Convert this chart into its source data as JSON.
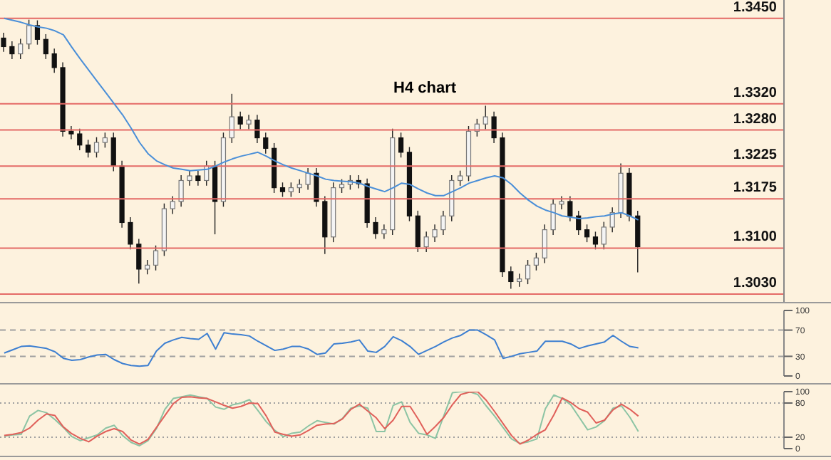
{
  "chart_data": [
    {
      "type": "candlestick",
      "title": "H4 chart",
      "categories": [
        null,
        null,
        null,
        null,
        null,
        null,
        null,
        null,
        null,
        null,
        null,
        null,
        null,
        null,
        null,
        null,
        null,
        null,
        null,
        null,
        null,
        null,
        null,
        null,
        null,
        null,
        null,
        null,
        null,
        null,
        null,
        null,
        null,
        null,
        null,
        null,
        null,
        null,
        null,
        null,
        null,
        null,
        null,
        null,
        null,
        null,
        null,
        null,
        null,
        null,
        null,
        null,
        null,
        null,
        null,
        null,
        null,
        null,
        null,
        null,
        null,
        null,
        null,
        null,
        null,
        null,
        null,
        null,
        null,
        null,
        null,
        null,
        null,
        null,
        null,
        null
      ],
      "ohlc": [
        [
          1.342,
          1.3428,
          1.3399,
          1.3407
        ],
        [
          1.3407,
          1.3415,
          1.3388,
          1.3396
        ],
        [
          1.3396,
          1.3419,
          1.3388,
          1.3411
        ],
        [
          1.3411,
          1.3448,
          1.3403,
          1.3439
        ],
        [
          1.3439,
          1.3447,
          1.341,
          1.3418
        ],
        [
          1.3418,
          1.3426,
          1.3388,
          1.3396
        ],
        [
          1.3396,
          1.3404,
          1.3367,
          1.3375
        ],
        [
          1.3375,
          1.3383,
          1.327,
          1.3278
        ],
        [
          1.3278,
          1.3286,
          1.3266,
          1.3274
        ],
        [
          1.3274,
          1.3282,
          1.3249,
          1.3257
        ],
        [
          1.3257,
          1.3265,
          1.3238,
          1.3246
        ],
        [
          1.3246,
          1.3269,
          1.3238,
          1.3261
        ],
        [
          1.3261,
          1.3276,
          1.3253,
          1.3268
        ],
        [
          1.3268,
          1.3276,
          1.3217,
          1.3225
        ],
        [
          1.3225,
          1.3233,
          1.3131,
          1.3139
        ],
        [
          1.3139,
          1.3147,
          1.3098,
          1.3106
        ],
        [
          1.3106,
          1.3114,
          1.3046,
          1.3068
        ],
        [
          1.3068,
          1.3082,
          1.306,
          1.3074
        ],
        [
          1.3074,
          1.3104,
          1.3066,
          1.3096
        ],
        [
          1.3096,
          1.3168,
          1.3088,
          1.316
        ],
        [
          1.316,
          1.3179,
          1.3152,
          1.3171
        ],
        [
          1.3171,
          1.3211,
          1.3163,
          1.3203
        ],
        [
          1.3203,
          1.3218,
          1.3195,
          1.321
        ],
        [
          1.321,
          1.3218,
          1.3195,
          1.3203
        ],
        [
          1.3203,
          1.3233,
          1.3195,
          1.3225
        ],
        [
          1.3225,
          1.3233,
          1.3121,
          1.3171
        ],
        [
          1.3171,
          1.3276,
          1.3163,
          1.3268
        ],
        [
          1.3268,
          1.3335,
          1.326,
          1.33
        ],
        [
          1.33,
          1.3308,
          1.3281,
          1.3289
        ],
        [
          1.3289,
          1.3303,
          1.3281,
          1.3295
        ],
        [
          1.3295,
          1.3303,
          1.326,
          1.3268
        ],
        [
          1.3268,
          1.3276,
          1.3244,
          1.3252
        ],
        [
          1.3252,
          1.326,
          1.3184,
          1.3192
        ],
        [
          1.3192,
          1.32,
          1.3178,
          1.3186
        ],
        [
          1.3186,
          1.32,
          1.3178,
          1.3192
        ],
        [
          1.3192,
          1.3205,
          1.3184,
          1.3197
        ],
        [
          1.3197,
          1.3222,
          1.3189,
          1.3214
        ],
        [
          1.3214,
          1.3222,
          1.3163,
          1.3171
        ],
        [
          1.3171,
          1.3179,
          1.3091,
          1.3117
        ],
        [
          1.3117,
          1.32,
          1.3109,
          1.3192
        ],
        [
          1.3192,
          1.3205,
          1.3184,
          1.3197
        ],
        [
          1.3197,
          1.3211,
          1.3189,
          1.3203
        ],
        [
          1.3203,
          1.3211,
          1.3191,
          1.3198
        ],
        [
          1.3198,
          1.3206,
          1.3131,
          1.3139
        ],
        [
          1.3139,
          1.3147,
          1.3114,
          1.3122
        ],
        [
          1.3122,
          1.3136,
          1.3114,
          1.3128
        ],
        [
          1.3128,
          1.3282,
          1.312,
          1.3268
        ],
        [
          1.3268,
          1.3276,
          1.3238,
          1.3246
        ],
        [
          1.3246,
          1.3254,
          1.3141,
          1.3149
        ],
        [
          1.3149,
          1.3157,
          1.3094,
          1.3102
        ],
        [
          1.3102,
          1.3125,
          1.3094,
          1.3117
        ],
        [
          1.3117,
          1.3136,
          1.3109,
          1.3128
        ],
        [
          1.3128,
          1.3157,
          1.312,
          1.3149
        ],
        [
          1.3149,
          1.3211,
          1.3141,
          1.3203
        ],
        [
          1.3203,
          1.3218,
          1.3195,
          1.321
        ],
        [
          1.321,
          1.3286,
          1.3202,
          1.3278
        ],
        [
          1.3278,
          1.3297,
          1.327,
          1.3289
        ],
        [
          1.3289,
          1.3317,
          1.3281,
          1.33
        ],
        [
          1.33,
          1.3308,
          1.326,
          1.3268
        ],
        [
          1.3268,
          1.3276,
          1.3056,
          1.3064
        ],
        [
          1.3064,
          1.3072,
          1.3038,
          1.3049
        ],
        [
          1.3049,
          1.3061,
          1.3041,
          1.3053
        ],
        [
          1.3053,
          1.3082,
          1.3045,
          1.3074
        ],
        [
          1.3074,
          1.3093,
          1.3066,
          1.3085
        ],
        [
          1.3085,
          1.3136,
          1.3077,
          1.3128
        ],
        [
          1.3128,
          1.3175,
          1.312,
          1.3167
        ],
        [
          1.3167,
          1.3179,
          1.3159,
          1.3171
        ],
        [
          1.3171,
          1.3179,
          1.3141,
          1.3149
        ],
        [
          1.3149,
          1.3157,
          1.312,
          1.3128
        ],
        [
          1.3128,
          1.3136,
          1.3109,
          1.3117
        ],
        [
          1.3117,
          1.3125,
          1.3098,
          1.3106
        ],
        [
          1.3106,
          1.314,
          1.3098,
          1.3132
        ],
        [
          1.3132,
          1.3162,
          1.3124,
          1.3154
        ],
        [
          1.3154,
          1.3229,
          1.3146,
          1.3214
        ],
        [
          1.3214,
          1.3222,
          1.3141,
          1.3149
        ],
        [
          1.3149,
          1.3157,
          1.3063,
          1.3102
        ]
      ],
      "series": [
        {
          "type": "line",
          "color": "#4a8fd8",
          "values": [
            1.345,
            1.3447,
            1.3444,
            1.344,
            1.3437,
            1.3435,
            1.3431,
            1.3425,
            1.3406,
            1.3388,
            1.3371,
            1.3354,
            1.3337,
            1.332,
            1.3303,
            1.3283,
            1.3261,
            1.3244,
            1.3233,
            1.3227,
            1.3222,
            1.322,
            1.3218,
            1.3219,
            1.322,
            1.3225,
            1.3231,
            1.3236,
            1.324,
            1.3243,
            1.3246,
            1.324,
            1.3233,
            1.3227,
            1.3222,
            1.3218,
            1.3214,
            1.321,
            1.3205,
            1.3203,
            1.3202,
            1.3201,
            1.3199,
            1.3194,
            1.319,
            1.3186,
            1.3192,
            1.3199,
            1.3197,
            1.319,
            1.3184,
            1.318,
            1.318,
            1.3186,
            1.3192,
            1.3199,
            1.3203,
            1.3207,
            1.321,
            1.3207,
            1.3197,
            1.3184,
            1.3173,
            1.3164,
            1.3158,
            1.3154,
            1.3149,
            1.3147,
            1.3145,
            1.3146,
            1.3148,
            1.3149,
            1.3152,
            1.3154,
            1.3149,
            1.3143
          ]
        }
      ],
      "ylim": [
        1.3018,
        1.3478
      ],
      "tick_labels": false,
      "ref_lines": [
        {
          "axis": "y",
          "value": 1.345,
          "label": "1.3450",
          "color": "#e46a66"
        },
        {
          "axis": "y",
          "value": 1.332,
          "label": "1.3320",
          "color": "#e46a66"
        },
        {
          "axis": "y",
          "value": 1.328,
          "label": "1.3280",
          "color": "#e46a66"
        },
        {
          "axis": "y",
          "value": 1.3225,
          "label": "1.3225",
          "color": "#e46a66"
        },
        {
          "axis": "y",
          "value": 1.3175,
          "label": "1.3175",
          "color": "#e46a66"
        },
        {
          "axis": "y",
          "value": 1.31,
          "label": "1.3100",
          "color": "#e46a66"
        },
        {
          "axis": "y",
          "value": 1.303,
          "label": "1.3030",
          "color": "#e46a66"
        }
      ]
    },
    {
      "type": "line",
      "categories": [
        null,
        null,
        null,
        null,
        null,
        null,
        null,
        null,
        null,
        null,
        null,
        null,
        null,
        null,
        null,
        null,
        null,
        null,
        null,
        null,
        null,
        null,
        null,
        null,
        null,
        null,
        null,
        null,
        null,
        null,
        null,
        null,
        null,
        null,
        null,
        null,
        null,
        null,
        null,
        null,
        null,
        null,
        null,
        null,
        null,
        null,
        null,
        null,
        null,
        null,
        null,
        null,
        null,
        null,
        null,
        null,
        null,
        null,
        null,
        null,
        null,
        null,
        null,
        null,
        null,
        null,
        null,
        null,
        null,
        null,
        null,
        null,
        null,
        null,
        null,
        null
      ],
      "series": [
        {
          "color": "#3d7fd1",
          "values": [
            35,
            40,
            45,
            46,
            44,
            42,
            37,
            27,
            24,
            25,
            29,
            32,
            33,
            25,
            19,
            16,
            15,
            16,
            38,
            50,
            55,
            59,
            57,
            56,
            65,
            41,
            66,
            64,
            63,
            61,
            53,
            46,
            39,
            41,
            45,
            45,
            41,
            33,
            35,
            49,
            50,
            52,
            55,
            38,
            36,
            45,
            60,
            54,
            45,
            33,
            39,
            45,
            52,
            58,
            62,
            70,
            70,
            63,
            55,
            27,
            30,
            34,
            36,
            38,
            53,
            53,
            53,
            49,
            42,
            46,
            49,
            52,
            62,
            53,
            45,
            43
          ]
        }
      ],
      "ylim": [
        0,
        100
      ],
      "yticks": [
        0,
        30,
        70,
        100
      ],
      "tick_labels": "y",
      "ref_lines": [
        {
          "axis": "y",
          "value": 30,
          "color": "#a0a0a0",
          "line_style": "dashed"
        },
        {
          "axis": "y",
          "value": 70,
          "color": "#a0a0a0",
          "line_style": "dashed"
        }
      ]
    },
    {
      "type": "line",
      "categories": [
        null,
        null,
        null,
        null,
        null,
        null,
        null,
        null,
        null,
        null,
        null,
        null,
        null,
        null,
        null,
        null,
        null,
        null,
        null,
        null,
        null,
        null,
        null,
        null,
        null,
        null,
        null,
        null,
        null,
        null,
        null,
        null,
        null,
        null,
        null,
        null,
        null,
        null,
        null,
        null,
        null,
        null,
        null,
        null,
        null,
        null,
        null,
        null,
        null,
        null,
        null,
        null,
        null,
        null,
        null,
        null,
        null,
        null,
        null,
        null,
        null,
        null,
        null,
        null,
        null,
        null,
        null,
        null,
        null,
        null,
        null,
        null,
        null,
        null,
        null,
        null
      ],
      "series": [
        {
          "color": "#8cc4a4",
          "values": [
            22,
            24,
            25,
            57,
            67,
            63,
            51,
            37,
            21,
            14,
            19,
            24,
            36,
            41,
            23,
            11,
            5,
            14,
            35,
            69,
            88,
            91,
            94,
            91,
            88,
            73,
            69,
            77,
            80,
            86,
            67,
            47,
            32,
            21,
            27,
            29,
            40,
            49,
            46,
            43,
            53,
            71,
            75,
            71,
            30,
            30,
            76,
            82,
            46,
            27,
            24,
            18,
            58,
            98,
            100,
            100,
            95,
            75,
            57,
            37,
            17,
            9,
            12,
            17,
            70,
            94,
            88,
            77,
            55,
            33,
            38,
            49,
            71,
            75,
            55,
            30
          ]
        },
        {
          "color": "#e0605a",
          "values": [
            23,
            25,
            28,
            36,
            50,
            61,
            58,
            38,
            26,
            18,
            12,
            22,
            30,
            35,
            30,
            15,
            8,
            16,
            37,
            58,
            79,
            90,
            91,
            89,
            88,
            82,
            76,
            71,
            74,
            80,
            79,
            57,
            29,
            25,
            22,
            24,
            32,
            41,
            43,
            44,
            52,
            69,
            78,
            66,
            54,
            35,
            50,
            74,
            74,
            51,
            25,
            39,
            55,
            77,
            95,
            99,
            100,
            85,
            65,
            44,
            23,
            8,
            15,
            25,
            33,
            59,
            89,
            81,
            70,
            64,
            45,
            50,
            68,
            78,
            69,
            57
          ]
        }
      ],
      "ylim": [
        0,
        100
      ],
      "yticks": [
        0,
        20,
        80,
        100
      ],
      "tick_labels": "y",
      "ref_lines": [
        {
          "axis": "y",
          "value": 20,
          "color": "#a0a0a0",
          "line_style": "dotted"
        },
        {
          "axis": "y",
          "value": 80,
          "color": "#a0a0a0",
          "line_style": "dotted"
        }
      ]
    }
  ]
}
